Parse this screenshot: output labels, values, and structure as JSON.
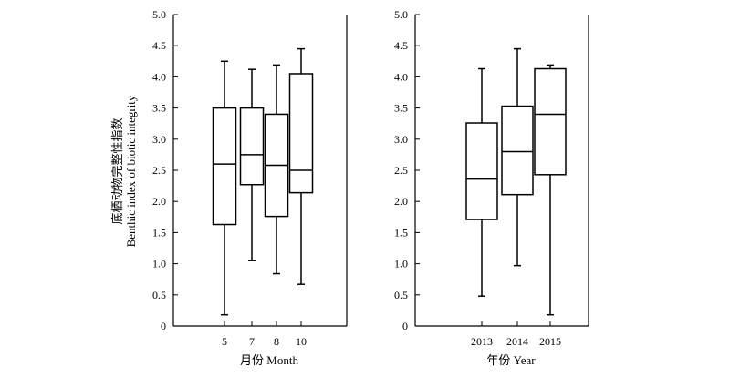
{
  "chart_data": {
    "type": "box",
    "ylabel_cn": "底栖动物完整性指数",
    "ylabel_en": "Benthic index of biotic integrity",
    "ylim": [
      0,
      5.0
    ],
    "yticks": [
      "0",
      "0.5",
      "1.0",
      "1.5",
      "2.0",
      "2.5",
      "3.0",
      "3.5",
      "4.0",
      "4.5",
      "5.0"
    ],
    "panels": [
      {
        "xlabel": "月份 Month",
        "categories": [
          "5",
          "7",
          "8",
          "10"
        ],
        "boxes": [
          {
            "min": 0.18,
            "q1": 1.63,
            "median": 2.6,
            "q3": 3.5,
            "max": 4.25
          },
          {
            "min": 1.05,
            "q1": 2.27,
            "median": 2.75,
            "q3": 3.5,
            "max": 4.12
          },
          {
            "min": 0.84,
            "q1": 1.76,
            "median": 2.58,
            "q3": 3.4,
            "max": 4.19
          },
          {
            "min": 0.67,
            "q1": 2.14,
            "median": 2.5,
            "q3": 4.05,
            "max": 4.45
          }
        ]
      },
      {
        "xlabel": "年份 Year",
        "categories": [
          "2013",
          "2014",
          "2015"
        ],
        "boxes": [
          {
            "min": 0.48,
            "q1": 1.71,
            "median": 2.36,
            "q3": 3.26,
            "max": 4.13
          },
          {
            "min": 0.97,
            "q1": 2.11,
            "median": 2.8,
            "q3": 3.53,
            "max": 4.45
          },
          {
            "min": 0.18,
            "q1": 2.43,
            "median": 3.4,
            "q3": 4.13,
            "max": 4.19
          }
        ]
      }
    ]
  }
}
